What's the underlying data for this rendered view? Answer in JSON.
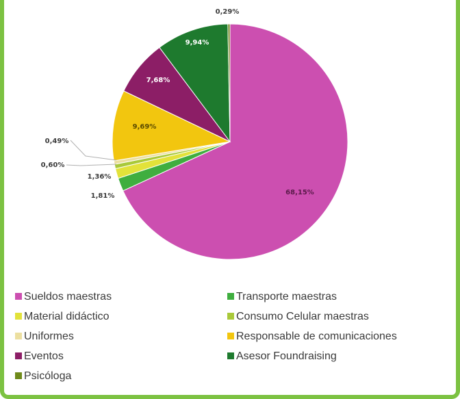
{
  "chart_data": {
    "type": "pie",
    "slices": [
      {
        "name": "Sueldos maestras",
        "value": 68.15,
        "label": "68,15%",
        "color": "#cc4fb0"
      },
      {
        "name": "Transporte maestras",
        "value": 1.81,
        "label": "1,81%",
        "color": "#3fae3f"
      },
      {
        "name": "Material didáctico",
        "value": 1.36,
        "label": "1,36%",
        "color": "#e2e23a"
      },
      {
        "name": "Consumo Celular maestras",
        "value": 0.6,
        "label": "0,60%",
        "color": "#a9c93a"
      },
      {
        "name": "Uniformes",
        "value": 0.49,
        "label": "0,49%",
        "color": "#ecdfa0"
      },
      {
        "name": "Responsable de comunicaciones",
        "value": 9.69,
        "label": "9,69%",
        "color": "#f2c60f"
      },
      {
        "name": "Eventos",
        "value": 7.68,
        "label": "7,68%",
        "color": "#8c1e66"
      },
      {
        "name": "Asesor Foundraising",
        "value": 9.94,
        "label": "9,94%",
        "color": "#1e7a2e"
      },
      {
        "name": "Psicóloga",
        "value": 0.29,
        "label": "0,29%",
        "color": "#6f8a1a"
      }
    ],
    "legend_position": "bottom"
  }
}
